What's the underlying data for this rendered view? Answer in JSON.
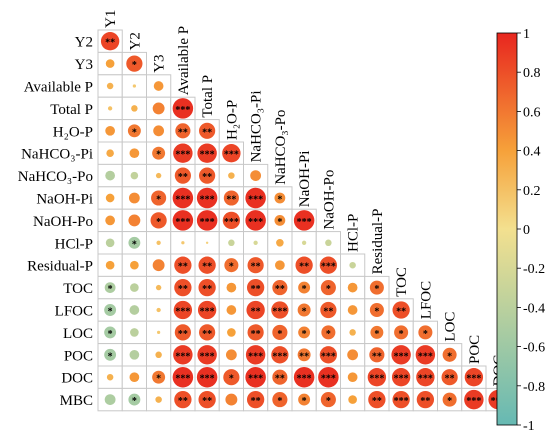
{
  "chart_data": {
    "type": "heatmap",
    "variables": [
      "Y1",
      "Y2",
      "Y3",
      "Available P",
      "Total P",
      "H2O-P",
      "NaHCO3-Pi",
      "NaHCO3-Po",
      "NaOH-Pi",
      "NaOH-Po",
      "HCl-P",
      "Residual-P",
      "TOC",
      "LFOC",
      "LOC",
      "POC",
      "DOC",
      "MBC"
    ],
    "row_labels": [
      "Y2",
      "Y3",
      "Available P",
      "Total P",
      "H₂O-P",
      "NaHCO₃-Pi",
      "NaHCO₃-Po",
      "NaOH-Pi",
      "NaOH-Po",
      "HCl-P",
      "Residual-P",
      "TOC",
      "LFOC",
      "LOC",
      "POC",
      "DOC",
      "MBC"
    ],
    "diag_labels": [
      "Y1",
      "Y2",
      "Y3",
      "Available P",
      "Total P",
      "H₂O-P",
      "NaHCO₃-Pi",
      "NaHCO₃-Po",
      "NaOH-Pi",
      "NaOH-Po",
      "HCl-P",
      "Residual-P",
      "TOC",
      "LFOC",
      "LOC",
      "POC",
      "DOC"
    ],
    "rows": [
      {
        "r": [
          0.85
        ],
        "s": [
          "**"
        ]
      },
      {
        "r": [
          0.4,
          0.75
        ],
        "s": [
          "",
          "*"
        ]
      },
      {
        "r": [
          0.3,
          0.15,
          0.45
        ],
        "s": [
          "",
          "",
          ""
        ]
      },
      {
        "r": [
          0.2,
          0.3,
          0.55,
          0.95
        ],
        "s": [
          "",
          "",
          "",
          "***"
        ]
      },
      {
        "r": [
          0.45,
          0.6,
          0.5,
          0.7,
          0.75
        ],
        "s": [
          "",
          "*",
          "",
          "**",
          "**"
        ]
      },
      {
        "r": [
          0.35,
          0.45,
          0.6,
          0.9,
          0.9,
          0.85
        ],
        "s": [
          "",
          "",
          "*",
          "***",
          "***",
          "***"
        ]
      },
      {
        "r": [
          -0.45,
          -0.35,
          0.25,
          0.75,
          0.75,
          0.3,
          0.5
        ],
        "s": [
          "",
          "",
          "",
          "**",
          "**",
          "",
          ""
        ]
      },
      {
        "r": [
          0.4,
          0.5,
          0.7,
          0.95,
          0.95,
          0.7,
          0.95,
          0.5
        ],
        "s": [
          "",
          "",
          "*",
          "***",
          "***",
          "**",
          "***",
          "*"
        ]
      },
      {
        "r": [
          0.45,
          0.55,
          0.75,
          0.95,
          0.95,
          0.8,
          0.95,
          0.5,
          0.95
        ],
        "s": [
          "",
          "",
          "*",
          "***",
          "***",
          "***",
          "***",
          "*",
          "***"
        ]
      },
      {
        "r": [
          -0.4,
          -0.55,
          0.2,
          0.15,
          0.1,
          -0.3,
          -0.2,
          0.35,
          -0.2,
          -0.3
        ],
        "s": [
          "",
          "*",
          "",
          "",
          "",
          "",
          "",
          "",
          "",
          ""
        ]
      },
      {
        "r": [
          0.4,
          0.4,
          0.55,
          0.8,
          0.8,
          0.65,
          0.75,
          0.45,
          0.8,
          0.8,
          -0.3
        ],
        "s": [
          "",
          "",
          "",
          "**",
          "**",
          "*",
          "**",
          "",
          "**",
          "***",
          ""
        ]
      },
      {
        "r": [
          -0.5,
          -0.4,
          0.25,
          0.8,
          0.8,
          0.45,
          0.8,
          0.7,
          0.55,
          0.7,
          0.45,
          0.65
        ],
        "s": [
          "*",
          "",
          "",
          "**",
          "**",
          "",
          "**",
          "**",
          "*",
          "*",
          "",
          "*"
        ]
      },
      {
        "r": [
          -0.55,
          -0.45,
          0.2,
          0.85,
          0.85,
          0.45,
          0.85,
          0.8,
          0.6,
          0.75,
          0.45,
          0.65,
          0.8
        ],
        "s": [
          "*",
          "",
          "",
          "***",
          "***",
          "",
          "**",
          "***",
          "*",
          "**",
          "",
          "*",
          "**"
        ]
      },
      {
        "r": [
          -0.55,
          -0.4,
          0.15,
          0.75,
          0.75,
          0.4,
          0.75,
          0.7,
          0.55,
          0.65,
          0.3,
          0.6,
          0.65,
          0.65
        ],
        "s": [
          "*",
          "",
          "",
          "**",
          "**",
          "",
          "**",
          "*",
          "*",
          "*",
          "",
          "*",
          "*",
          "*"
        ]
      },
      {
        "r": [
          -0.55,
          -0.45,
          0.3,
          0.9,
          0.9,
          0.5,
          0.9,
          0.8,
          0.6,
          0.8,
          0.5,
          0.7,
          0.9,
          0.9,
          0.65
        ],
        "s": [
          "*",
          "",
          "",
          "***",
          "***",
          "",
          "***",
          "***",
          "**",
          "***",
          "",
          "**",
          "***",
          "***",
          "*"
        ]
      },
      {
        "r": [
          0.3,
          0.45,
          0.6,
          0.95,
          0.95,
          0.75,
          0.95,
          0.7,
          0.95,
          0.95,
          0.45,
          0.85,
          0.85,
          0.85,
          0.75,
          0.85
        ],
        "s": [
          "",
          "",
          "*",
          "***",
          "***",
          "*",
          "***",
          "**",
          "***",
          "***",
          "",
          "***",
          "***",
          "***",
          "**",
          "***"
        ]
      },
      {
        "r": [
          -0.5,
          -0.55,
          0.3,
          0.8,
          0.8,
          0.55,
          0.8,
          0.7,
          0.55,
          0.7,
          0.4,
          0.8,
          0.8,
          0.8,
          0.65,
          0.9,
          0.9
        ],
        "s": [
          "",
          "*",
          "",
          "**",
          "**",
          "",
          "**",
          "*",
          "*",
          "*",
          "",
          "**",
          "***",
          "**",
          "*",
          "***",
          "***"
        ]
      }
    ],
    "colorbar": {
      "min": -1,
      "max": 1,
      "ticks": [
        "1",
        "0.8",
        "0.6",
        "0.4",
        "0.2",
        "0",
        "-0.2",
        "-0.4",
        "-0.6",
        "-0.8",
        "-1"
      ],
      "colors": [
        "#66b9b3",
        "#f3e08f",
        "#f6a13a",
        "#e8261f"
      ]
    }
  }
}
